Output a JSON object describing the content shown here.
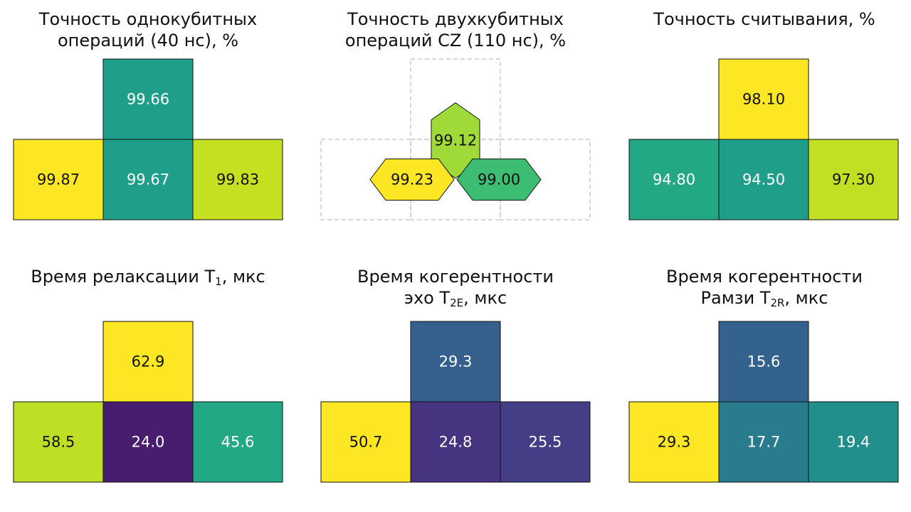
{
  "chart_data": [
    {
      "type": "heatmap",
      "title_lines": [
        "Точность однокубитных",
        "операций (40 нс), %"
      ],
      "colormap": "viridis",
      "cells": [
        {
          "pos": "top",
          "value": "99.66",
          "color": "#1f9e89"
        },
        {
          "pos": "left",
          "value": "99.87",
          "color": "#fde725"
        },
        {
          "pos": "center",
          "value": "99.67",
          "color": "#1f9e89"
        },
        {
          "pos": "right",
          "value": "99.83",
          "color": "#c5e021"
        }
      ]
    },
    {
      "type": "heatmap",
      "title_lines": [
        "Точность двухкубитных",
        "операций CZ (110 нс), %"
      ],
      "colormap": "viridis",
      "couplers": [
        {
          "pair": "center-top",
          "value": "99.12",
          "color": "#a0da39"
        },
        {
          "pair": "left-center",
          "value": "99.23",
          "color": "#fde725"
        },
        {
          "pair": "center-right",
          "value": "99.00",
          "color": "#3dbc74"
        }
      ]
    },
    {
      "type": "heatmap",
      "title_lines": [
        "Точность считывания, %"
      ],
      "colormap": "viridis",
      "cells": [
        {
          "pos": "top",
          "value": "98.10",
          "color": "#fde725"
        },
        {
          "pos": "left",
          "value": "94.80",
          "color": "#22a884"
        },
        {
          "pos": "center",
          "value": "94.50",
          "color": "#1f9e89"
        },
        {
          "pos": "right",
          "value": "97.30",
          "color": "#c2df23"
        }
      ]
    },
    {
      "type": "heatmap",
      "title_main": "Время релаксации T",
      "title_sub": "1",
      "title_tail": ", мкс",
      "colormap": "viridis",
      "cells": [
        {
          "pos": "top",
          "value": "62.9",
          "color": "#fde725"
        },
        {
          "pos": "left",
          "value": "58.5",
          "color": "#bddf26"
        },
        {
          "pos": "center",
          "value": "24.0",
          "color": "#481c6e"
        },
        {
          "pos": "right",
          "value": "45.6",
          "color": "#22a884"
        }
      ]
    },
    {
      "type": "heatmap",
      "title_line1": "Время когерентности",
      "title_main": "эхо T",
      "title_sub": "2E",
      "title_tail": ", мкс",
      "colormap": "viridis",
      "cells": [
        {
          "pos": "top",
          "value": "29.3",
          "color": "#355f8d"
        },
        {
          "pos": "left",
          "value": "50.7",
          "color": "#fde725"
        },
        {
          "pos": "center",
          "value": "24.8",
          "color": "#463480"
        },
        {
          "pos": "right",
          "value": "25.5",
          "color": "#433e85"
        }
      ]
    },
    {
      "type": "heatmap",
      "title_line1": "Время когерентности",
      "title_main": "Рамзи T",
      "title_sub": "2R",
      "title_tail": ", мкс",
      "colormap": "viridis",
      "cells": [
        {
          "pos": "top",
          "value": "15.6",
          "color": "#33638d"
        },
        {
          "pos": "left",
          "value": "29.3",
          "color": "#fde725"
        },
        {
          "pos": "center",
          "value": "17.7",
          "color": "#297b8e"
        },
        {
          "pos": "right",
          "value": "19.4",
          "color": "#21908d"
        }
      ]
    }
  ]
}
